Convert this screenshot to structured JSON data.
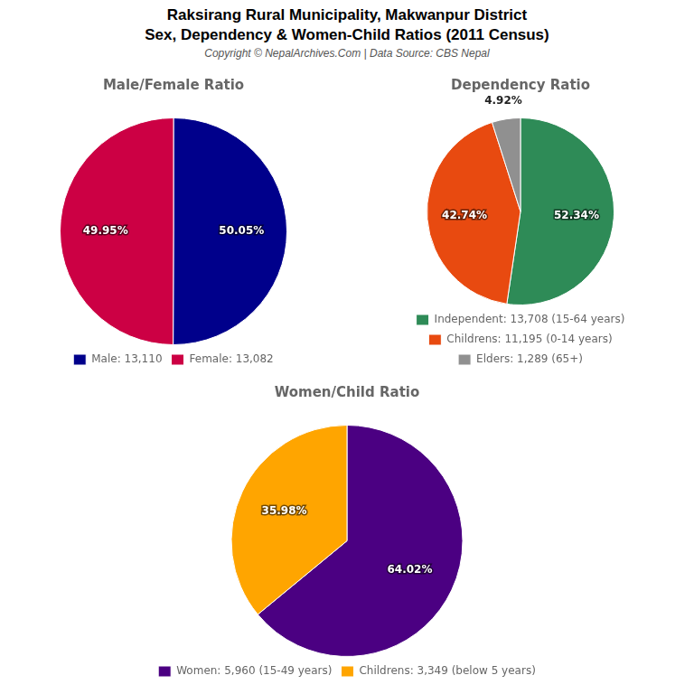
{
  "title": "Raksirang Rural Municipality, Makwanpur District",
  "subtitle": "Sex, Dependency & Women-Child Ratios (2011 Census)",
  "annotations": [
    "Copyright © NepalArchives.Com | Data Source: CBS Nepal"
  ],
  "chart_data": [
    {
      "type": "pie",
      "title": "Male/Female Ratio",
      "categories": [
        "Male: 13,110",
        "Female: 13,082"
      ],
      "values": [
        50.05,
        49.95
      ],
      "value_labels": [
        "50.05%",
        "49.95%"
      ],
      "colors": [
        "#00008B",
        "#CC0044"
      ],
      "data_labels": true,
      "legend": "bottom"
    },
    {
      "type": "pie",
      "title": "Dependency Ratio",
      "categories": [
        "Independent: 13,708 (15-64 years)",
        "Childrens: 11,195 (0-14 years)",
        "Elders: 1,289 (65+)"
      ],
      "values": [
        52.34,
        42.74,
        4.92
      ],
      "value_labels": [
        "52.34%",
        "42.74%",
        "4.92%"
      ],
      "colors": [
        "#2E8B57",
        "#E84A10",
        "#909090"
      ],
      "data_labels": true,
      "legend": "bottom"
    },
    {
      "type": "pie",
      "title": "Women/Child Ratio",
      "categories": [
        "Women: 5,960 (15-49 years)",
        "Childrens: 3,349 (below 5 years)"
      ],
      "values": [
        64.02,
        35.98
      ],
      "value_labels": [
        "64.02%",
        "35.98%"
      ],
      "colors": [
        "#4B0082",
        "#FFA500"
      ],
      "data_labels": true,
      "legend": "bottom"
    }
  ]
}
